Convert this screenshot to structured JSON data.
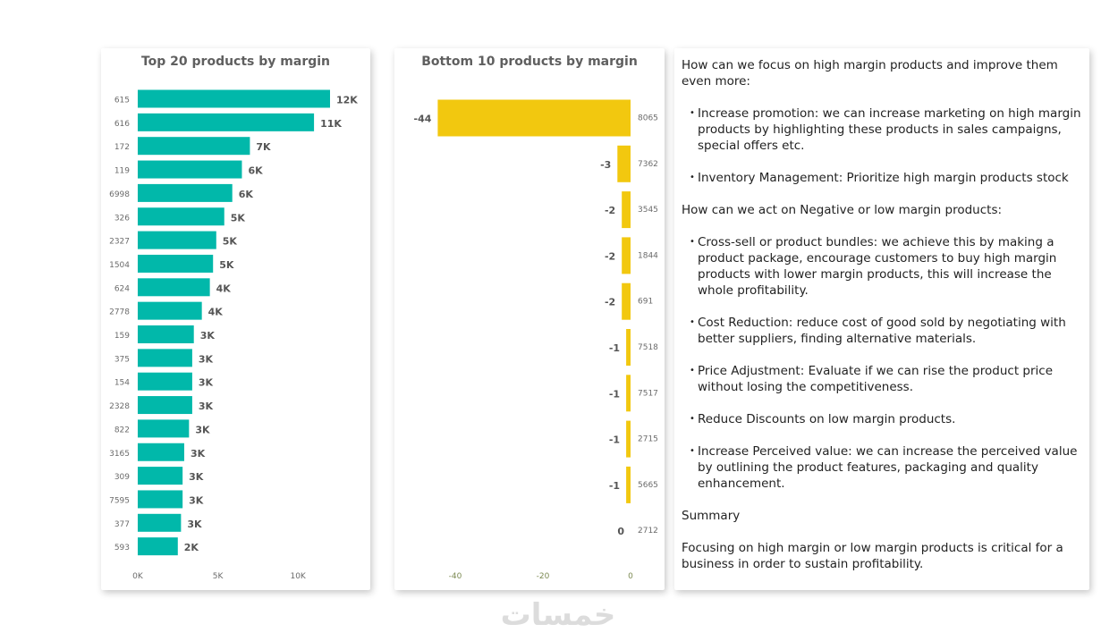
{
  "chart_data": [
    {
      "type": "bar",
      "orientation": "horizontal",
      "title": "Top 20 products by margin",
      "categories": [
        "615",
        "616",
        "172",
        "119",
        "6998",
        "326",
        "2327",
        "1504",
        "624",
        "2778",
        "159",
        "375",
        "154",
        "2328",
        "822",
        "3165",
        "309",
        "7595",
        "377",
        "593"
      ],
      "values": [
        12000,
        11000,
        7000,
        6500,
        5900,
        5400,
        4900,
        4700,
        4500,
        4000,
        3500,
        3400,
        3400,
        3400,
        3200,
        2900,
        2800,
        2800,
        2700,
        2500
      ],
      "data_labels": [
        "12K",
        "11K",
        "7K",
        "6K",
        "6K",
        "5K",
        "5K",
        "5K",
        "4K",
        "4K",
        "3K",
        "3K",
        "3K",
        "3K",
        "3K",
        "3K",
        "3K",
        "3K",
        "3K",
        "2K"
      ],
      "x_ticks": [
        "0K",
        "5K",
        "10K"
      ],
      "xlim": [
        0,
        13000
      ],
      "color": "#01B8AA",
      "grid": false
    },
    {
      "type": "bar",
      "orientation": "horizontal",
      "title": "Bottom 10 products by margin",
      "categories": [
        "8065",
        "7362",
        "3545",
        "1844",
        "691",
        "7518",
        "7517",
        "2715",
        "5665",
        "2712"
      ],
      "values": [
        -44,
        -3,
        -2,
        -2,
        -2,
        -1,
        -1,
        -1,
        -1,
        0
      ],
      "data_labels": [
        "-44",
        "-3",
        "-2",
        "-2",
        "-2",
        "-1",
        "-1",
        "-1",
        "-1",
        "0"
      ],
      "x_ticks": [
        "-40",
        "-20",
        "0"
      ],
      "xlim": [
        -48,
        0
      ],
      "color": "#F2C80F",
      "grid": false
    }
  ],
  "text_panel": {
    "q1": "How can we focus on high margin products and improve them even more:",
    "q1_items": [
      "Increase promotion: we can increase marketing on high margin products by highlighting these products in sales campaigns, special offers etc.",
      "Inventory Management: Prioritize high margin products stock"
    ],
    "q2": "How can we act on Negative or low margin products:",
    "q2_items": [
      "Cross-sell or product bundles: we achieve this by making a product package, encourage customers to buy high margin products with lower margin products, this will increase the whole profitability.",
      "Cost Reduction: reduce cost of good sold by negotiating with better suppliers, finding alternative materials.",
      "Price Adjustment: Evaluate if we can rise the product price without losing the competitiveness.",
      "Reduce Discounts on low margin products.",
      "Increase Perceived value: we can increase the perceived value by outlining the product features, packaging and quality enhancement."
    ],
    "summary_title": "Summary",
    "summary_text": "Focusing on high margin or low margin products is critical for a business in order to sustain profitability."
  },
  "watermark": "خمسات",
  "colors": {
    "teal": "#01B8AA",
    "yellow": "#F2C80F"
  }
}
